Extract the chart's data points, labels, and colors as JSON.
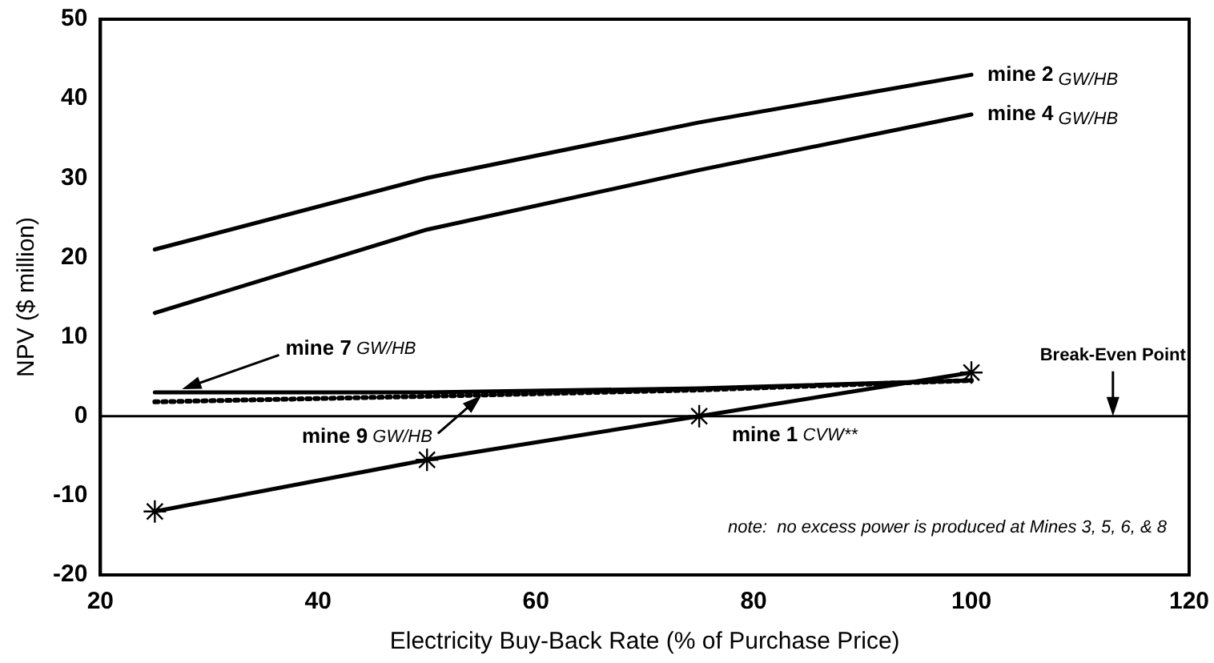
{
  "chart_data": {
    "type": "line",
    "xlabel": "Electricity Buy-Back Rate (% of Purchase Price)",
    "ylabel": "NPV ($ million)",
    "x": [
      25,
      50,
      75,
      100
    ],
    "series": [
      {
        "name": "mine 2 GW/HB",
        "color": "#000000",
        "values": [
          21,
          30,
          37,
          43
        ],
        "marker": "none",
        "line_style": "solid"
      },
      {
        "name": "mine 4 GW/HB",
        "color": "#000000",
        "values": [
          13,
          23.5,
          31,
          38
        ],
        "marker": "none",
        "line_style": "solid"
      },
      {
        "name": "mine 7 GW/HB",
        "color": "#000000",
        "values": [
          3,
          3,
          3.5,
          4.5
        ],
        "marker": "none",
        "line_style": "solid"
      },
      {
        "name": "mine 9 GW/HB",
        "color": "#000000",
        "values": [
          1.8,
          2.5,
          3.3,
          4.5
        ],
        "marker": "none",
        "line_style": "dotted"
      },
      {
        "name": "mine 1 CVW**",
        "color": "#000000",
        "values": [
          -12,
          -5.5,
          0,
          5.5
        ],
        "marker": "cross",
        "line_style": "solid"
      }
    ],
    "xlim": [
      20,
      120
    ],
    "xticks": [
      20,
      40,
      60,
      80,
      100,
      120
    ],
    "ylim": [
      -20,
      50
    ],
    "yticks": [
      -20,
      -10,
      0,
      10,
      20,
      30,
      40,
      50
    ],
    "grid": false,
    "legend": false,
    "ref_lines": [
      {
        "axis": "y",
        "value": 0,
        "color": "#000000"
      }
    ],
    "annotations": [
      {
        "text": "Break-Even Point",
        "x": 113,
        "y": 0
      },
      "note:  no excess power is produced at Mines 3, 5, 6, & 8"
    ]
  }
}
